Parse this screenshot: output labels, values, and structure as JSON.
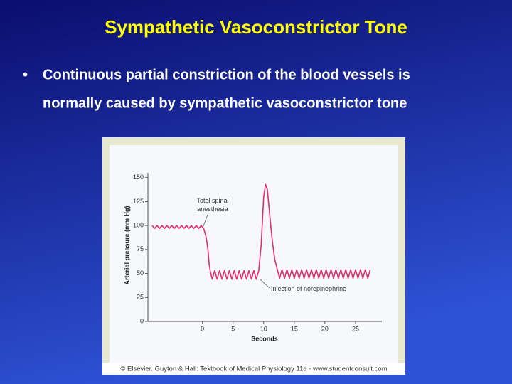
{
  "slide": {
    "title": "Sympathetic Vasoconstrictor Tone",
    "bullet": [
      "Continuous partial constriction of the blood vessels is",
      "normally caused by sympathetic vasoconstrictor tone"
    ],
    "credit": "© Elsevier. Guyton & Hall: Textbook of Medical Physiology 11e - www.studentconsult.com"
  },
  "chart_data": {
    "type": "line",
    "xlabel": "Seconds",
    "ylabel": "Arterial pressure (mm Hg)",
    "xlim": [
      -8.9,
      29.3
    ],
    "ylim": [
      0,
      155
    ],
    "xticks": [
      0,
      5,
      10,
      15,
      20,
      25
    ],
    "yticks": [
      0,
      25,
      50,
      75,
      100,
      125,
      150
    ],
    "annotations": [
      {
        "text_lines": [
          "Total spinal",
          "anesthesia"
        ]
      },
      {
        "text_lines": [
          "Injection of norepinephrine"
        ]
      }
    ],
    "series": [
      {
        "color": "#e0306a",
        "x": [
          -8.2,
          -7.8,
          -7.4,
          -7.0,
          -6.6,
          -6.2,
          -5.8,
          -5.4,
          -5.0,
          -4.6,
          -4.2,
          -3.8,
          -3.4,
          -3.0,
          -2.6,
          -2.2,
          -1.8,
          -1.4,
          -1.0,
          -0.6,
          -0.2,
          0.2,
          0.6,
          0.9,
          1.1,
          1.3,
          1.6,
          2.0,
          2.4,
          2.8,
          3.2,
          3.6,
          4.0,
          4.4,
          4.8,
          5.2,
          5.6,
          6.0,
          6.4,
          6.8,
          7.2,
          7.6,
          8.0,
          8.4,
          8.8,
          9.2,
          9.6,
          10.0,
          10.3,
          10.6,
          11.0,
          11.4,
          11.8,
          12.2,
          12.6,
          13.0,
          13.4,
          13.8,
          14.2,
          14.6,
          15.0,
          15.4,
          15.8,
          16.2,
          16.6,
          17.0,
          17.4,
          17.8,
          18.2,
          18.6,
          19.0,
          19.4,
          19.8,
          20.2,
          20.6,
          21.0,
          21.4,
          21.8,
          22.2,
          22.6,
          23.0,
          23.4,
          23.8,
          24.2,
          24.6,
          25.0,
          25.4,
          25.8,
          26.2,
          26.6,
          27.0,
          27.4
        ],
        "values": [
          100,
          97,
          100,
          97,
          100,
          97,
          100,
          97,
          100,
          97,
          100,
          97,
          100,
          97,
          100,
          97,
          100,
          97,
          100,
          97,
          100,
          97,
          88,
          75,
          60,
          52,
          44,
          53,
          44,
          53,
          44,
          53,
          44,
          53,
          44,
          53,
          44,
          53,
          44,
          53,
          44,
          53,
          44,
          53,
          44,
          53,
          80,
          130,
          143,
          138,
          110,
          85,
          65,
          55,
          45,
          54,
          45,
          54,
          45,
          54,
          45,
          54,
          45,
          54,
          45,
          54,
          45,
          54,
          45,
          54,
          45,
          54,
          45,
          54,
          45,
          54,
          45,
          54,
          45,
          54,
          45,
          54,
          45,
          54,
          45,
          54,
          45,
          54,
          45,
          54,
          45,
          54
        ]
      }
    ]
  }
}
